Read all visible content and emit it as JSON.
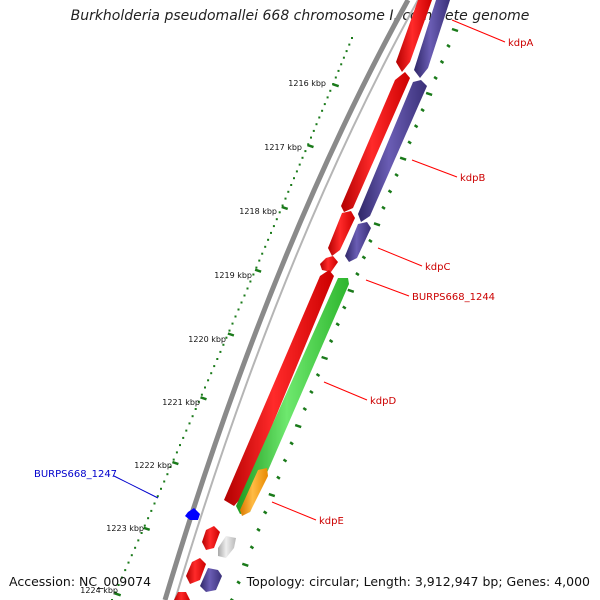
{
  "title": "Burkholderia pseudomallei 668 chromosome I, complete genome",
  "footer": {
    "accession": "Accession: NC_009074",
    "summary": "Topology: circular; Length: 3,912,947 bp; Genes: 4,000"
  },
  "ticks": [
    "1216 kbp",
    "1217 kbp",
    "1218 kbp",
    "1219 kbp",
    "1220 kbp",
    "1221 kbp",
    "1222 kbp",
    "1223 kbp",
    "1224 kbp"
  ],
  "gene_labels": [
    {
      "name": "kdpA",
      "color": "#cc0000"
    },
    {
      "name": "kdpB",
      "color": "#cc0000"
    },
    {
      "name": "kdpC",
      "color": "#cc0000"
    },
    {
      "name": "BURPS668_1244",
      "color": "#cc0000"
    },
    {
      "name": "kdpD",
      "color": "#cc0000"
    },
    {
      "name": "BURPS668_1247",
      "color": "#0000cc"
    },
    {
      "name": "kdpE",
      "color": "#cc0000"
    }
  ],
  "colors": {
    "cds_red": "#ff0000",
    "cds_purple": "#4b3f8f",
    "cds_green": "#33cc33",
    "cds_orange": "#ff9900",
    "cds_blue": "#0000ff",
    "cds_grey": "#c8c8c8",
    "tick_green": "#1a7a1a",
    "backbone": "#8a8a8a"
  }
}
